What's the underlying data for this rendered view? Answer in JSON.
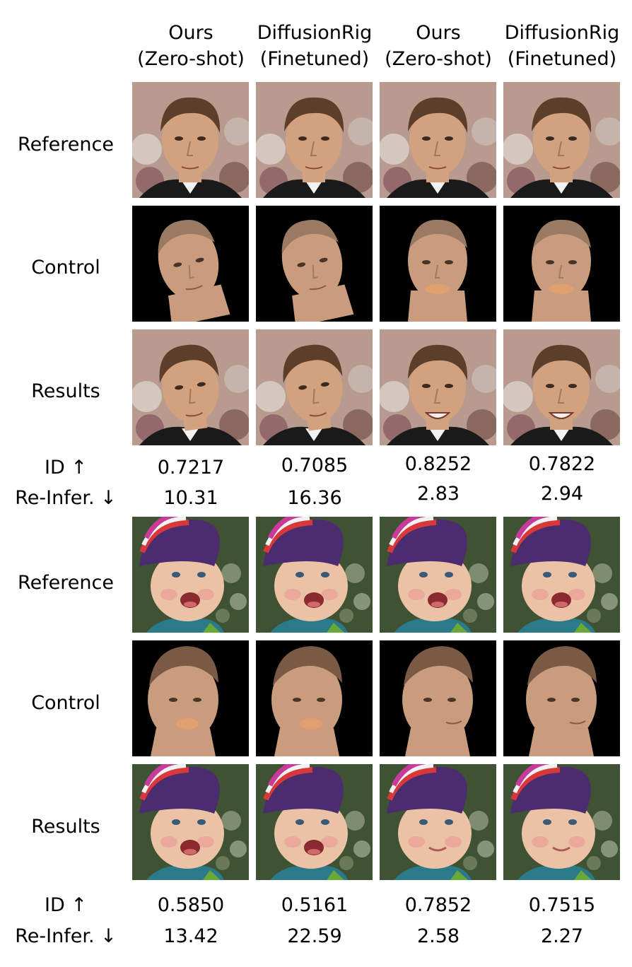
{
  "columns": [
    {
      "line1": "Ours",
      "line2": "(Zero-shot)"
    },
    {
      "line1": "DiffusionRig",
      "line2": "(Finetuned)"
    },
    {
      "line1": "Ours",
      "line2": "(Zero-shot)"
    },
    {
      "line1": "DiffusionRig",
      "line2": "(Finetuned)"
    }
  ],
  "row_labels": {
    "reference": "Reference",
    "control": "Control",
    "results": "Results"
  },
  "metric_labels": {
    "id": "ID ↑",
    "reinfer": "Re-Infer. ↓"
  },
  "block1": {
    "id": [
      "0.7217",
      "0.7085",
      "0.8252",
      "0.7822"
    ],
    "reinfer": [
      "10.31",
      "16.36",
      "2.83",
      "2.94"
    ]
  },
  "block2": {
    "id": [
      "0.5850",
      "0.5161",
      "0.7852",
      "0.7515"
    ],
    "reinfer": [
      "13.42",
      "22.59",
      "2.58",
      "2.27"
    ]
  },
  "colors": {
    "man_bg": "#b89a8e",
    "man_skin": "#d2a27f",
    "man_hair": "#5b3f2a",
    "render_skin": "#c99c7e",
    "mouth_patch": "#e0a070",
    "baby_bg": "#3f5233",
    "baby_skin": "#ecc2a6",
    "hat_purple": "#4b2c6e",
    "hat_stripes": [
      "#d8383a",
      "#f2f2f2",
      "#c93a9a"
    ],
    "render_bg": "#000000"
  }
}
